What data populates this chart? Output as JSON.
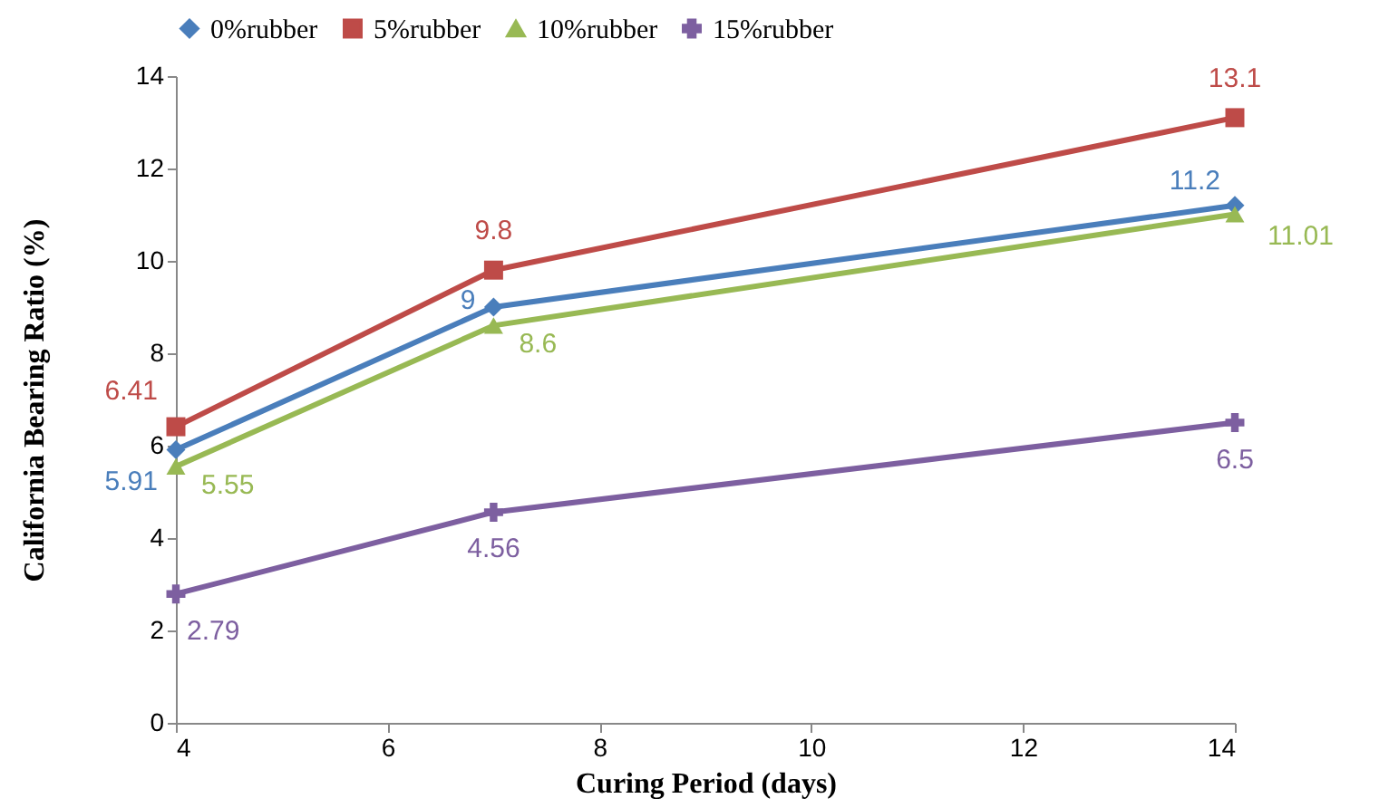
{
  "chart_data": {
    "type": "line",
    "xlabel": "Curing Period (days)",
    "ylabel": "California Bearing Ratio (%)",
    "x": [
      4,
      7,
      14
    ],
    "series": [
      {
        "name": "0%rubber",
        "color": "#4a7ebb",
        "marker": "diamond",
        "values": [
          5.91,
          9,
          11.2
        ]
      },
      {
        "name": "5%rubber",
        "color": "#be4b48",
        "marker": "square",
        "values": [
          6.41,
          9.8,
          13.1
        ]
      },
      {
        "name": "10%rubber",
        "color": "#98b954",
        "marker": "triangle",
        "values": [
          5.55,
          8.6,
          11.01
        ]
      },
      {
        "name": "15%rubber",
        "color": "#7d5fa0",
        "marker": "cross",
        "values": [
          2.79,
          4.56,
          6.5
        ]
      }
    ],
    "xlim": [
      4,
      14
    ],
    "xticks": [
      4,
      6,
      8,
      10,
      12,
      14
    ],
    "ylim": [
      0,
      14
    ],
    "yticks": [
      0,
      2,
      4,
      6,
      8,
      10,
      12,
      14
    ],
    "grid": false,
    "legend": "top",
    "data_labels": true,
    "line_style": "solid"
  }
}
